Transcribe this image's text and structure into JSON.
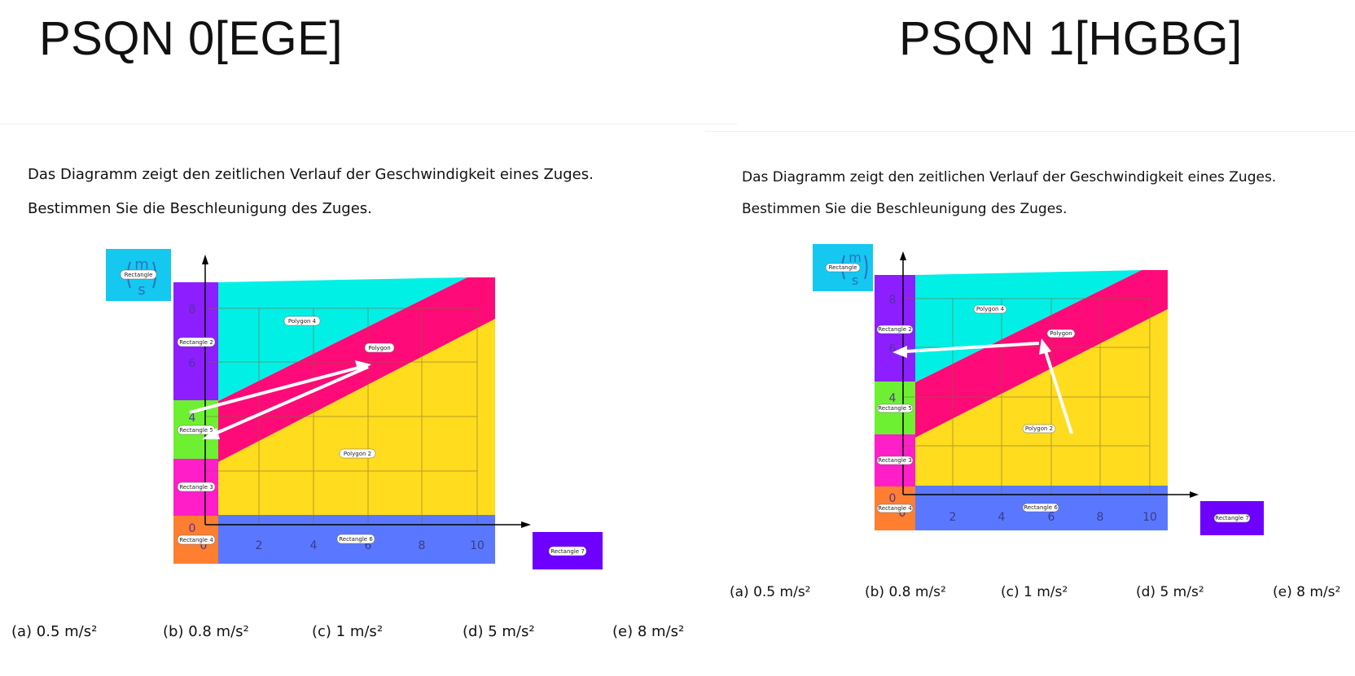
{
  "panels": [
    {
      "title": "PSQN 0[EGE]",
      "question": {
        "line1": "Das Diagramm zeigt den zeitlichen Verlauf der Geschwindigkeit eines Zuges.",
        "line2": "Bestimmen Sie die Beschleunigung des Zuges."
      },
      "shape_labels": {
        "rect1": "Rectangle",
        "rect2": "Rectangle 2",
        "rect3": "Rectangle 3",
        "rect4": "Rectangle 4",
        "rect5": "Rectangle 5",
        "rect6": "Rectangle 6",
        "rect7": "Rectangle 7",
        "polygon": "Polygon",
        "polygon2": "Polygon 2",
        "polygon4": "Polygon 4"
      },
      "x_ticks": [
        "0",
        "2",
        "4",
        "6",
        "8",
        "10"
      ],
      "y_ticks": [
        "0",
        "8",
        "6",
        "4"
      ],
      "answers": [
        "(a)  0.5 m/s²",
        "(b) 0.8 m/s²",
        "(c) 1 m/s²",
        "(d) 5 m/s²",
        "(e) 8 m/s²"
      ]
    },
    {
      "title": "PSQN 1[HGBG]",
      "question": {
        "line1": "Das Diagramm zeigt den zeitlichen Verlauf der Geschwindigkeit eines Zuges.",
        "line2": "Bestimmen Sie die Beschleunigung des Zuges."
      },
      "shape_labels": {
        "rect1": "Rectangle",
        "rect2": "Rectangle 2",
        "rect3": "Rectangle 3",
        "rect4": "Rectangle 4",
        "rect5": "Rectangle 5",
        "rect6": "Rectangle 6",
        "rect7": "Rectangle 7",
        "polygon": "Polygon",
        "polygon2": "Polygon 2",
        "polygon4": "Polygon 4"
      },
      "x_ticks": [
        "0",
        "2",
        "4",
        "6",
        "8",
        "10"
      ],
      "y_ticks": [
        "0",
        "8",
        "6",
        "4"
      ],
      "answers": [
        "(a)  0.5 m/s²",
        "(b) 0.8 m/s²",
        "(c) 1 m/s²",
        "(d) 5 m/s²",
        "(e) 8 m/s²"
      ]
    }
  ],
  "unit_symbol": {
    "m": "m",
    "s": "s"
  },
  "colors": {
    "cyan": "#00f0e6",
    "pink": "#ff0a78",
    "yellow": "#ffdc1e",
    "purple": "#8c1eff",
    "green": "#6ef032",
    "magenta": "#ff1ec8",
    "orange": "#ff7e30",
    "blue": "#5a78ff",
    "violet": "#6e00ff",
    "skyblue": "#14c8f0",
    "arrow": "#ffffff"
  }
}
